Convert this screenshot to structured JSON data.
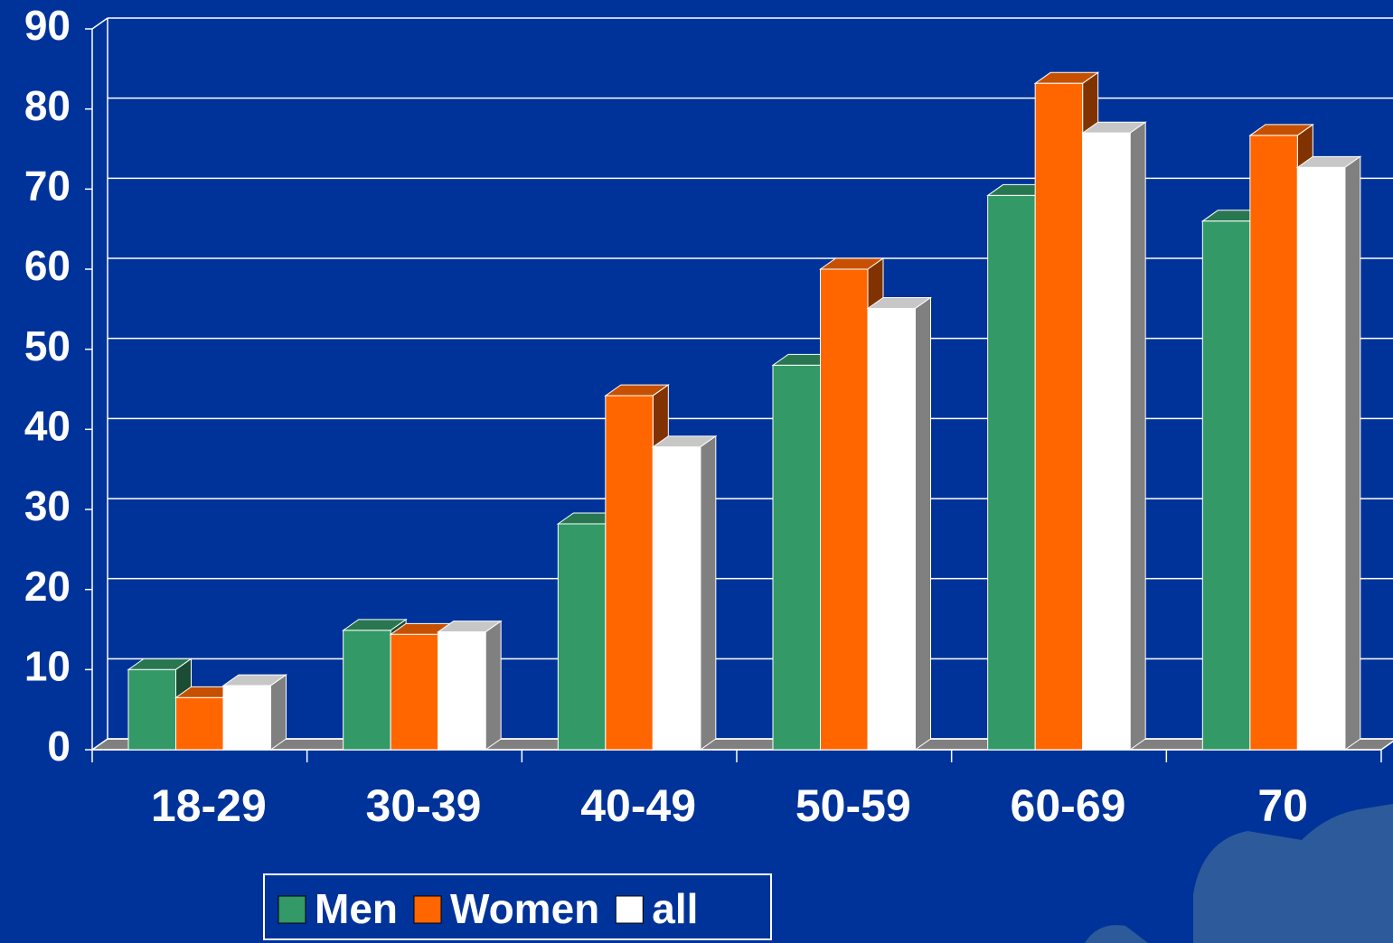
{
  "chart_data": {
    "type": "bar3d",
    "categories": [
      "18-29",
      "30-39",
      "40-49",
      "50-59",
      "60-69",
      "70"
    ],
    "series": [
      {
        "name": "Men",
        "color": "#339966",
        "values": [
          10,
          14.9,
          28.2,
          48,
          69.2,
          66
        ]
      },
      {
        "name": "Women",
        "color": "#ff6600",
        "values": [
          6.5,
          14.4,
          44.2,
          60,
          83.2,
          76.7
        ]
      },
      {
        "name": "all",
        "color": "#ffffff",
        "values": [
          8,
          14.7,
          37.8,
          55.1,
          77,
          72.7
        ]
      }
    ],
    "ylim": [
      0,
      90
    ],
    "yticks": [
      0,
      10,
      20,
      30,
      40,
      50,
      60,
      70,
      80,
      90
    ],
    "grid": true,
    "legend": "bottom"
  }
}
